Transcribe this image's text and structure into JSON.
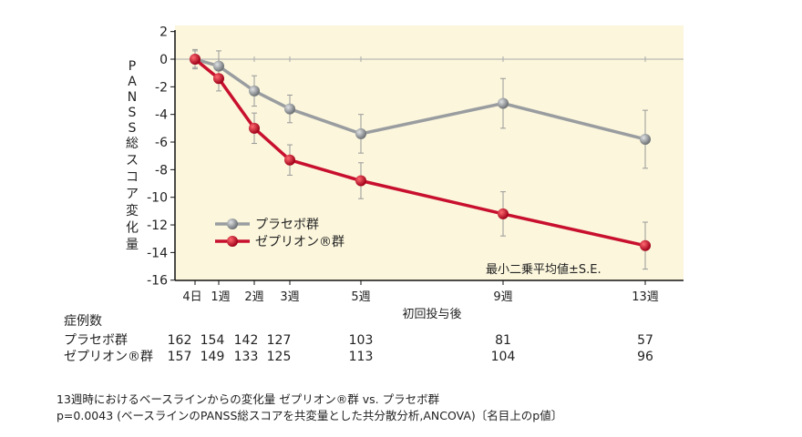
{
  "chart_data": {
    "type": "line",
    "ylabel": "PANSS総スコア変化量",
    "xlabel": "初回投与後",
    "categories": [
      "4日",
      "1週",
      "2週",
      "3週",
      "5週",
      "9週",
      "13週"
    ],
    "ylim": [
      -16,
      2
    ],
    "yticks": [
      2,
      0,
      -2,
      -4,
      -6,
      -8,
      -10,
      -12,
      -14,
      -16
    ],
    "annotation": "最小二乗平均値±S.E.",
    "legend_position": "bottom-left",
    "series": [
      {
        "name": "プラセボ群",
        "color": "#9a9da0",
        "values": [
          0,
          -0.5,
          -2.3,
          -3.6,
          -5.4,
          -3.2,
          -5.8
        ],
        "se": [
          0.7,
          1.1,
          1.1,
          1.0,
          1.4,
          1.8,
          2.1
        ]
      },
      {
        "name": "ゼプリオン®群",
        "color": "#c8102e",
        "values": [
          0,
          -1.4,
          -5.0,
          -7.3,
          -8.8,
          -11.2,
          -13.5
        ],
        "se": [
          0.6,
          0.9,
          1.1,
          1.1,
          1.3,
          1.6,
          1.7
        ]
      }
    ],
    "background": "#fbf6dc"
  },
  "n_table": {
    "title": "症例数",
    "rows": [
      {
        "label": "プラセボ群",
        "values": [
          "162",
          "154",
          "142",
          "127",
          "103",
          "81",
          "57"
        ]
      },
      {
        "label": "ゼプリオン®群",
        "values": [
          "157",
          "149",
          "133",
          "125",
          "113",
          "104",
          "96"
        ]
      }
    ]
  },
  "footnotes": [
    "13週時におけるベースラインからの変化量 ゼプリオン®群 vs. プラセボ群",
    "p=0.0043 (ベースラインのPANSS総スコアを共変量とした共分散分析,ANCOVA)〔名目上のp値〕"
  ]
}
